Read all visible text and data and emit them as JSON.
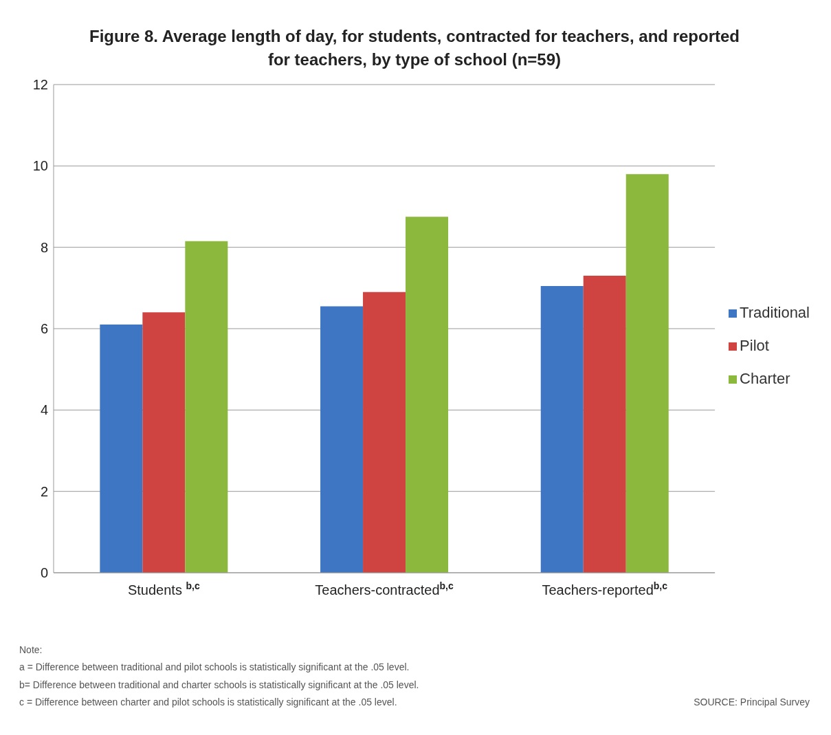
{
  "chart_data": {
    "type": "bar",
    "title": "Figure 8. Average length of day, for students, contracted for teachers, and reported for teachers, by type of school (n=59)",
    "categories": [
      "Students $^{b,c}$",
      "Teachers-contracted$^{b,c}$",
      "Teachers-reported$^{b,c}$"
    ],
    "series": [
      {
        "name": "Traditional",
        "color": "#3f76c4",
        "values": [
          6.1,
          6.55,
          7.05
        ]
      },
      {
        "name": "Pilot",
        "color": "#cf4440",
        "values": [
          6.4,
          6.9,
          7.3
        ]
      },
      {
        "name": "Charter",
        "color": "#8cb83e",
        "values": [
          8.15,
          8.75,
          9.8
        ]
      }
    ],
    "ylim": [
      0,
      12
    ],
    "yticks": [
      0,
      2,
      4,
      6,
      8,
      10,
      12
    ],
    "grid": "y",
    "legend": "right",
    "annotations": [
      "Note:",
      "a = Difference between traditional and pilot schools is statistically significant at the .05 level.",
      "b= Difference between traditional and charter schools is statistically significant at the .05 level.",
      "c = Difference between charter and pilot schools is statistically significant at the .05 level.",
      "SOURCE: Principal Survey"
    ]
  }
}
